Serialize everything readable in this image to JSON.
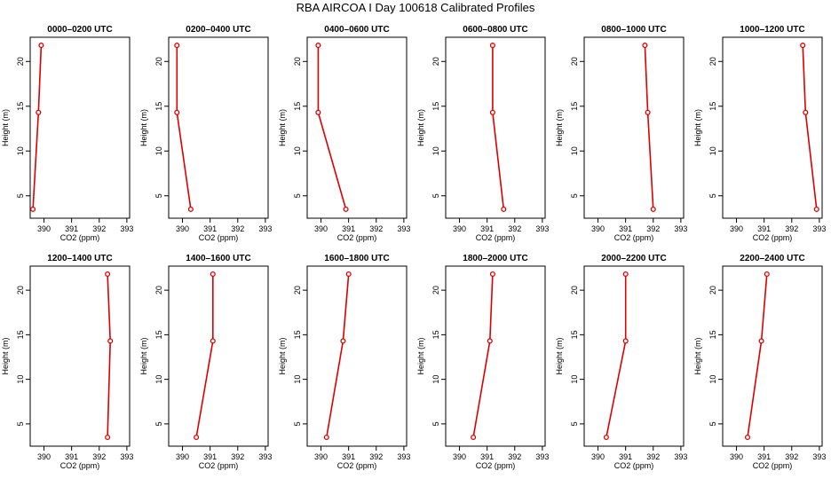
{
  "title": "RBA AIRCOA I  Day 100618  Calibrated Profiles",
  "chart_data": {
    "type": "line",
    "xlabel": "CO2 (ppm)",
    "ylabel": "Height (m)",
    "xlim": [
      389.5,
      393.1
    ],
    "ylim": [
      2.5,
      22.7
    ],
    "xticks": [
      390,
      391,
      392,
      393
    ],
    "yticks": [
      5,
      10,
      15,
      20
    ],
    "line_color": "#dd0000",
    "panels": [
      {
        "title": "0000–0200 UTC",
        "x": [
          389.6,
          389.8,
          389.9
        ],
        "y": [
          3.5,
          14.3,
          21.8
        ]
      },
      {
        "title": "0200–0400 UTC",
        "x": [
          390.3,
          389.8,
          389.8
        ],
        "y": [
          3.5,
          14.3,
          21.8
        ]
      },
      {
        "title": "0400–0600 UTC",
        "x": [
          390.9,
          389.9,
          389.9
        ],
        "y": [
          3.5,
          14.3,
          21.8
        ]
      },
      {
        "title": "0600–0800 UTC",
        "x": [
          391.6,
          391.2,
          391.2
        ],
        "y": [
          3.5,
          14.3,
          21.8
        ]
      },
      {
        "title": "0800–1000 UTC",
        "x": [
          392.0,
          391.8,
          391.7
        ],
        "y": [
          3.5,
          14.3,
          21.8
        ]
      },
      {
        "title": "1000–1200 UTC",
        "x": [
          392.9,
          392.5,
          392.4
        ],
        "y": [
          3.5,
          14.3,
          21.8
        ]
      },
      {
        "title": "1200–1400 UTC",
        "x": [
          392.3,
          392.4,
          392.3
        ],
        "y": [
          3.5,
          14.3,
          21.8
        ]
      },
      {
        "title": "1400–1600 UTC",
        "x": [
          390.5,
          391.1,
          391.1
        ],
        "y": [
          3.5,
          14.3,
          21.8
        ]
      },
      {
        "title": "1600–1800 UTC",
        "x": [
          390.2,
          390.8,
          391.0
        ],
        "y": [
          3.5,
          14.3,
          21.8
        ]
      },
      {
        "title": "1800–2000 UTC",
        "x": [
          390.5,
          391.1,
          391.2
        ],
        "y": [
          3.5,
          14.3,
          21.8
        ]
      },
      {
        "title": "2000–2200 UTC",
        "x": [
          390.3,
          391.0,
          391.0
        ],
        "y": [
          3.5,
          14.3,
          21.8
        ]
      },
      {
        "title": "2200–2400 UTC",
        "x": [
          390.4,
          390.9,
          391.1
        ],
        "y": [
          3.5,
          14.3,
          21.8
        ]
      }
    ]
  }
}
